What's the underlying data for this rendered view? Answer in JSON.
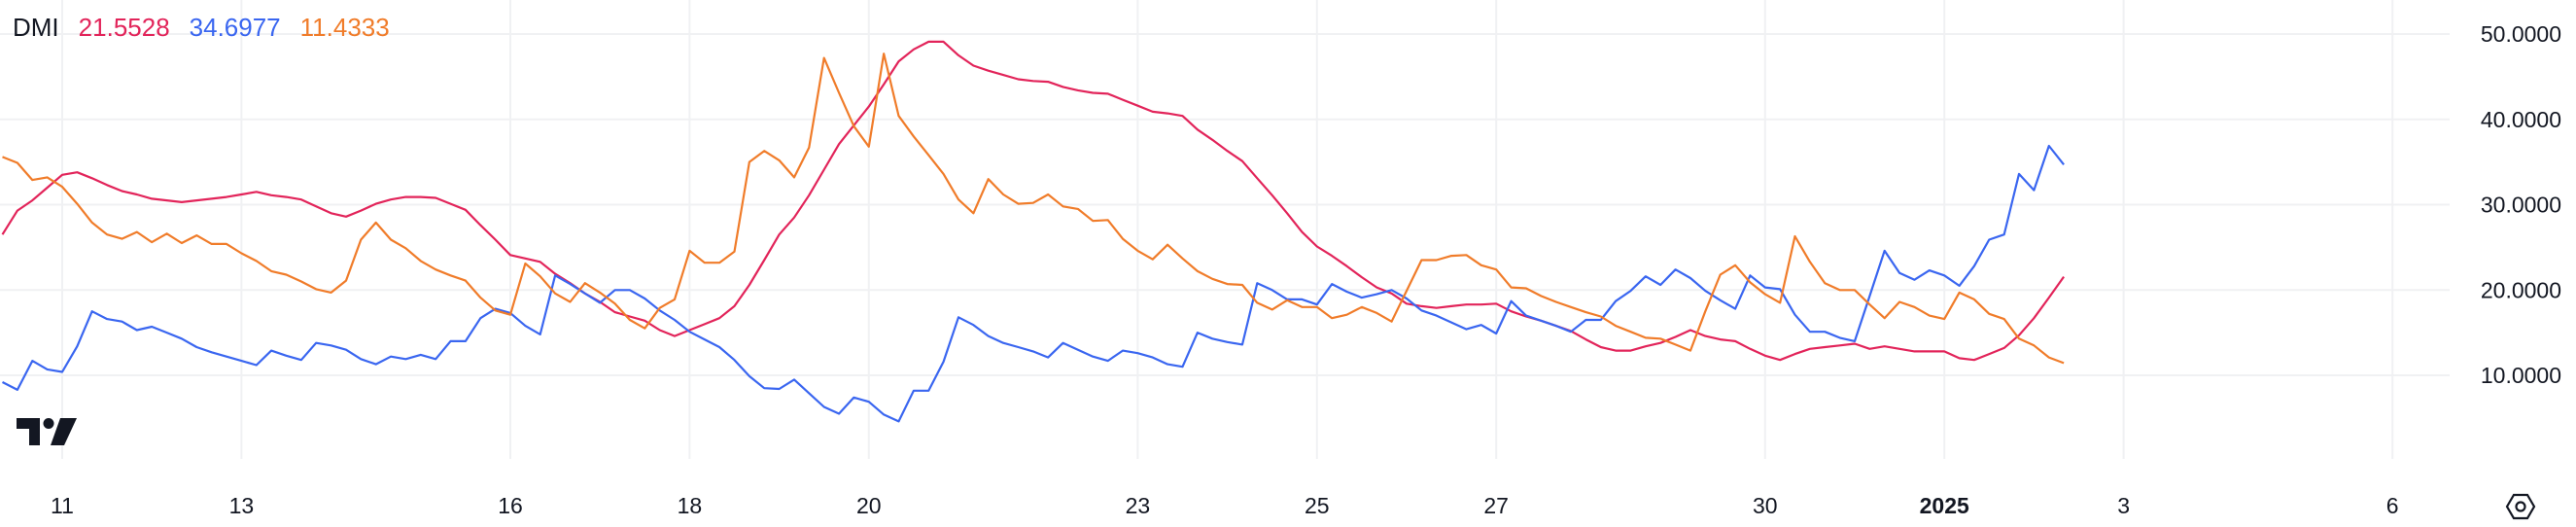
{
  "legend": {
    "title": "DMI",
    "values": [
      "21.5528",
      "34.6977",
      "11.4333"
    ]
  },
  "colors": {
    "red": "#e2245a",
    "blue": "#3a66f0",
    "orange": "#f07c2a",
    "text": "#131722",
    "grid": "#f0f1f3"
  },
  "icons": {
    "logo": "tradingview-logo",
    "settings": "hexagon-settings-icon"
  },
  "chart_data": {
    "type": "line",
    "title": "DMI",
    "ylim": [
      0,
      52
    ],
    "y_ticks": [
      "10.0000",
      "20.0000",
      "30.0000",
      "40.0000",
      "50.0000"
    ],
    "y_tick_values": [
      10,
      20,
      30,
      40,
      50
    ],
    "x_ticks": [
      {
        "label": "11",
        "date": "2024-12-11"
      },
      {
        "label": "13",
        "date": "2024-12-13"
      },
      {
        "label": "16",
        "date": "2024-12-16"
      },
      {
        "label": "18",
        "date": "2024-12-18"
      },
      {
        "label": "20",
        "date": "2024-12-20"
      },
      {
        "label": "23",
        "date": "2024-12-23"
      },
      {
        "label": "25",
        "date": "2024-12-25"
      },
      {
        "label": "27",
        "date": "2024-12-27"
      },
      {
        "label": "30",
        "date": "2024-12-30"
      },
      {
        "label": "2025",
        "date": "2025-01-01",
        "bold": true
      },
      {
        "label": "3",
        "date": "2025-01-03"
      },
      {
        "label": "6",
        "date": "2025-01-06"
      }
    ],
    "grid": true,
    "legend_position": "top-left",
    "x": [
      "2024-12-10 08:00",
      "2024-12-10 12:00",
      "2024-12-10 16:00",
      "2024-12-10 20:00",
      "2024-12-11 00:00",
      "2024-12-11 04:00",
      "2024-12-11 08:00",
      "2024-12-11 12:00",
      "2024-12-11 16:00",
      "2024-12-11 20:00",
      "2024-12-12 00:00",
      "2024-12-12 04:00",
      "2024-12-12 08:00",
      "2024-12-12 12:00",
      "2024-12-12 16:00",
      "2024-12-12 20:00",
      "2024-12-13 00:00",
      "2024-12-13 04:00",
      "2024-12-13 08:00",
      "2024-12-13 12:00",
      "2024-12-13 16:00",
      "2024-12-13 20:00",
      "2024-12-14 00:00",
      "2024-12-14 04:00",
      "2024-12-14 08:00",
      "2024-12-14 12:00",
      "2024-12-14 16:00",
      "2024-12-14 20:00",
      "2024-12-15 00:00",
      "2024-12-15 04:00",
      "2024-12-15 08:00",
      "2024-12-15 12:00",
      "2024-12-15 16:00",
      "2024-12-15 20:00",
      "2024-12-16 00:00",
      "2024-12-16 04:00",
      "2024-12-16 08:00",
      "2024-12-16 12:00",
      "2024-12-16 16:00",
      "2024-12-16 20:00",
      "2024-12-17 00:00",
      "2024-12-17 04:00",
      "2024-12-17 08:00",
      "2024-12-17 12:00",
      "2024-12-17 16:00",
      "2024-12-17 20:00",
      "2024-12-18 00:00",
      "2024-12-18 04:00",
      "2024-12-18 08:00",
      "2024-12-18 12:00",
      "2024-12-18 16:00",
      "2024-12-18 20:00",
      "2024-12-19 00:00",
      "2024-12-19 04:00",
      "2024-12-19 08:00",
      "2024-12-19 12:00",
      "2024-12-19 16:00",
      "2024-12-19 20:00",
      "2024-12-20 00:00",
      "2024-12-20 04:00",
      "2024-12-20 08:00",
      "2024-12-20 12:00",
      "2024-12-20 16:00",
      "2024-12-20 20:00",
      "2024-12-21 00:00",
      "2024-12-21 04:00",
      "2024-12-21 08:00",
      "2024-12-21 12:00",
      "2024-12-21 16:00",
      "2024-12-21 20:00",
      "2024-12-22 00:00",
      "2024-12-22 04:00",
      "2024-12-22 08:00",
      "2024-12-22 12:00",
      "2024-12-22 16:00",
      "2024-12-22 20:00",
      "2024-12-23 00:00",
      "2024-12-23 04:00",
      "2024-12-23 08:00",
      "2024-12-23 12:00",
      "2024-12-23 16:00",
      "2024-12-23 20:00",
      "2024-12-24 00:00",
      "2024-12-24 04:00",
      "2024-12-24 08:00",
      "2024-12-24 12:00",
      "2024-12-24 16:00",
      "2024-12-24 20:00",
      "2024-12-25 00:00",
      "2024-12-25 04:00",
      "2024-12-25 08:00",
      "2024-12-25 12:00",
      "2024-12-25 16:00",
      "2024-12-25 20:00",
      "2024-12-26 00:00",
      "2024-12-26 04:00",
      "2024-12-26 08:00",
      "2024-12-26 12:00",
      "2024-12-26 16:00",
      "2024-12-26 20:00",
      "2024-12-27 00:00",
      "2024-12-27 04:00",
      "2024-12-27 08:00",
      "2024-12-27 12:00",
      "2024-12-27 16:00",
      "2024-12-27 20:00",
      "2024-12-28 00:00",
      "2024-12-28 04:00",
      "2024-12-28 08:00",
      "2024-12-28 12:00",
      "2024-12-28 16:00",
      "2024-12-28 20:00",
      "2024-12-29 00:00",
      "2024-12-29 04:00",
      "2024-12-29 08:00",
      "2024-12-29 12:00",
      "2024-12-29 16:00",
      "2024-12-29 20:00",
      "2024-12-30 00:00",
      "2024-12-30 04:00",
      "2024-12-30 08:00",
      "2024-12-30 12:00",
      "2024-12-30 16:00",
      "2024-12-30 20:00",
      "2024-12-31 00:00",
      "2024-12-31 04:00",
      "2024-12-31 08:00",
      "2024-12-31 12:00",
      "2024-12-31 16:00",
      "2024-12-31 20:00",
      "2025-01-01 00:00",
      "2025-01-01 04:00",
      "2025-01-01 08:00",
      "2025-01-01 12:00",
      "2025-01-01 16:00",
      "2025-01-01 20:00",
      "2025-01-02 00:00",
      "2025-01-02 04:00",
      "2025-01-02 08:00"
    ],
    "series": [
      {
        "color": "#e2245a",
        "values": [
          26.5,
          29.3,
          30.5,
          32.0,
          33.5,
          33.8,
          33.1,
          32.3,
          31.6,
          31.2,
          30.7,
          30.5,
          30.3,
          30.5,
          30.7,
          30.9,
          31.2,
          31.5,
          31.1,
          30.9,
          30.6,
          29.8,
          29.0,
          28.6,
          29.3,
          30.1,
          30.6,
          30.9,
          30.9,
          30.8,
          30.1,
          29.4,
          27.6,
          25.9,
          24.1,
          23.7,
          23.3,
          21.9,
          20.8,
          19.6,
          18.6,
          17.4,
          16.9,
          16.4,
          15.3,
          14.6,
          15.3,
          16.0,
          16.7,
          18.1,
          20.6,
          23.5,
          26.5,
          28.5,
          31.1,
          34.1,
          37.1,
          39.3,
          41.5,
          44.1,
          46.8,
          48.2,
          49.1,
          49.1,
          47.5,
          46.3,
          45.7,
          45.2,
          44.7,
          44.5,
          44.4,
          43.8,
          43.4,
          43.1,
          43.0,
          42.3,
          41.6,
          40.9,
          40.7,
          40.4,
          38.8,
          37.6,
          36.3,
          35.1,
          33.1,
          31.1,
          29.0,
          26.8,
          25.1,
          24.0,
          22.8,
          21.5,
          20.3,
          19.6,
          18.4,
          18.1,
          17.9,
          18.1,
          18.3,
          18.3,
          18.4,
          17.5,
          16.9,
          16.4,
          15.8,
          15.2,
          14.2,
          13.3,
          12.9,
          12.9,
          13.4,
          13.8,
          14.5,
          15.3,
          14.6,
          14.2,
          14.0,
          13.1,
          12.3,
          11.8,
          12.5,
          13.1,
          13.3,
          13.5,
          13.7,
          13.1,
          13.4,
          13.1,
          12.8,
          12.8,
          12.8,
          12.0,
          11.8,
          12.5,
          13.2,
          14.7,
          16.7,
          19.1,
          21.5528
        ]
      },
      {
        "color": "#3a66f0",
        "values": [
          9.2,
          8.3,
          11.7,
          10.7,
          10.4,
          13.4,
          17.5,
          16.6,
          16.3,
          15.3,
          15.7,
          15.0,
          14.3,
          13.3,
          12.7,
          12.2,
          11.7,
          11.2,
          12.9,
          12.3,
          11.8,
          13.8,
          13.5,
          13.0,
          11.9,
          11.3,
          12.2,
          11.9,
          12.4,
          11.9,
          14.0,
          14.0,
          16.7,
          17.8,
          17.3,
          15.8,
          14.8,
          21.7,
          20.7,
          19.6,
          18.5,
          20.0,
          20.0,
          19.0,
          17.6,
          16.5,
          15.1,
          14.2,
          13.3,
          11.8,
          9.9,
          8.5,
          8.4,
          9.5,
          7.9,
          6.3,
          5.5,
          7.4,
          6.9,
          5.4,
          4.6,
          8.2,
          8.2,
          11.6,
          16.8,
          15.9,
          14.6,
          13.8,
          13.3,
          12.8,
          12.1,
          13.8,
          13.0,
          12.2,
          11.7,
          12.9,
          12.6,
          12.1,
          11.3,
          11.0,
          15.0,
          14.3,
          13.9,
          13.6,
          20.8,
          20.0,
          18.9,
          18.9,
          18.3,
          20.7,
          19.8,
          19.1,
          19.5,
          20.0,
          19.0,
          17.6,
          17.0,
          16.2,
          15.4,
          15.9,
          14.9,
          18.7,
          17.0,
          16.4,
          15.8,
          15.1,
          16.5,
          16.5,
          18.7,
          19.9,
          21.6,
          20.6,
          22.4,
          21.4,
          19.9,
          18.8,
          17.8,
          21.7,
          20.3,
          20.1,
          17.1,
          15.1,
          15.1,
          14.4,
          14.0,
          19.3,
          24.6,
          22.0,
          21.2,
          22.3,
          21.7,
          20.5,
          22.8,
          25.9,
          26.5,
          33.6,
          31.7,
          36.9,
          34.6977
        ]
      },
      {
        "color": "#f07c2a",
        "values": [
          35.6,
          34.9,
          32.9,
          33.2,
          32.1,
          30.1,
          27.9,
          26.5,
          26.0,
          26.8,
          25.6,
          26.6,
          25.5,
          26.4,
          25.4,
          25.4,
          24.3,
          23.4,
          22.2,
          21.8,
          21.0,
          20.1,
          19.7,
          21.1,
          25.9,
          27.9,
          25.9,
          24.9,
          23.4,
          22.4,
          21.7,
          21.1,
          19.1,
          17.6,
          17.1,
          23.1,
          21.6,
          19.6,
          18.6,
          20.8,
          19.7,
          18.4,
          16.5,
          15.5,
          17.9,
          18.9,
          24.6,
          23.2,
          23.2,
          24.5,
          35.0,
          36.3,
          35.2,
          33.2,
          36.7,
          47.2,
          43.1,
          39.2,
          36.8,
          47.7,
          40.4,
          38.0,
          35.8,
          33.6,
          30.6,
          29.0,
          33.0,
          31.2,
          30.1,
          30.2,
          31.2,
          29.8,
          29.5,
          28.1,
          28.2,
          26.0,
          24.6,
          23.6,
          25.3,
          23.7,
          22.2,
          21.3,
          20.7,
          20.6,
          18.5,
          17.7,
          18.8,
          18.0,
          18.0,
          16.7,
          17.1,
          18.0,
          17.3,
          16.3,
          19.9,
          23.5,
          23.5,
          24.0,
          24.1,
          22.9,
          22.4,
          20.3,
          20.2,
          19.3,
          18.6,
          18.0,
          17.4,
          16.9,
          15.8,
          15.1,
          14.4,
          14.3,
          13.6,
          12.9,
          17.5,
          21.8,
          22.9,
          20.9,
          19.5,
          18.5,
          26.3,
          23.3,
          20.8,
          20.0,
          20.0,
          18.3,
          16.7,
          18.6,
          18.0,
          17.0,
          16.6,
          19.7,
          18.9,
          17.2,
          16.6,
          14.3,
          13.5,
          12.1,
          11.4333
        ]
      }
    ]
  }
}
